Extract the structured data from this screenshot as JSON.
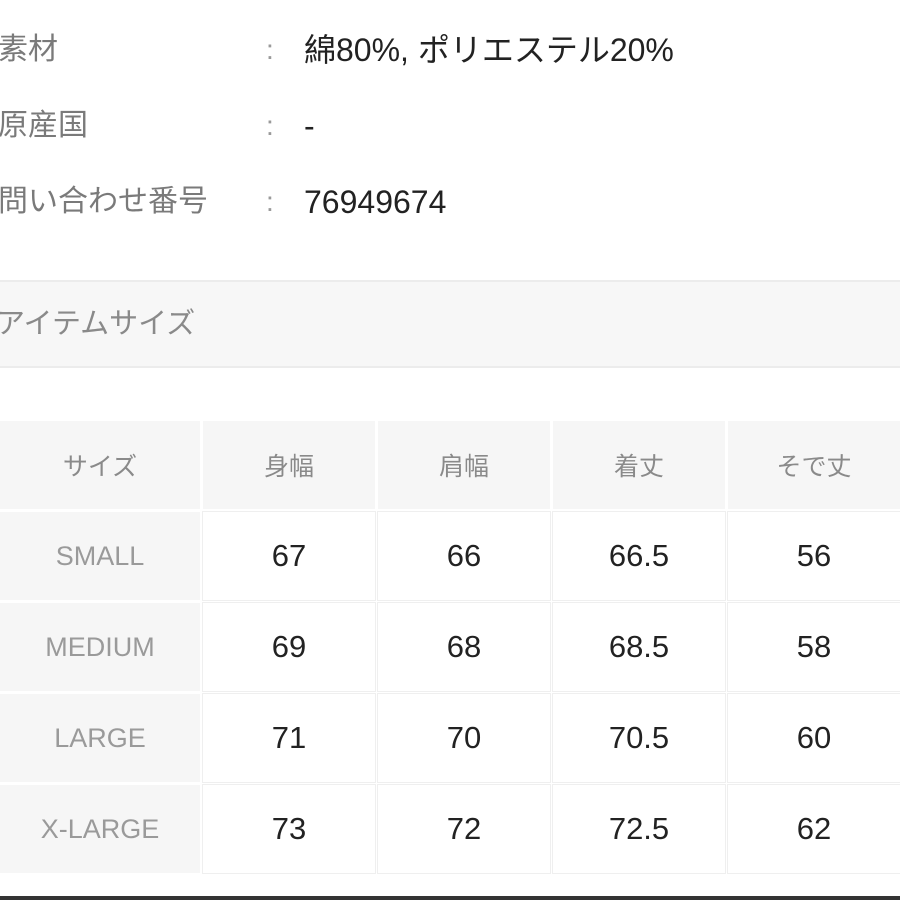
{
  "specs": [
    {
      "label": "素材",
      "value": "綿80%, ポリエステル20%"
    },
    {
      "label": "原産国",
      "value": "-"
    },
    {
      "label": "問い合わせ番号",
      "value": "76949674"
    }
  ],
  "colon": ":",
  "section_title": "アイテムサイズ",
  "table": {
    "headers": [
      "サイズ",
      "身幅",
      "肩幅",
      "着丈",
      "そで丈"
    ],
    "rows": [
      [
        "SMALL",
        "67",
        "66",
        "66.5",
        "56"
      ],
      [
        "MEDIUM",
        "69",
        "68",
        "68.5",
        "58"
      ],
      [
        "LARGE",
        "71",
        "70",
        "70.5",
        "60"
      ],
      [
        "X-LARGE",
        "73",
        "72",
        "72.5",
        "62"
      ]
    ]
  }
}
